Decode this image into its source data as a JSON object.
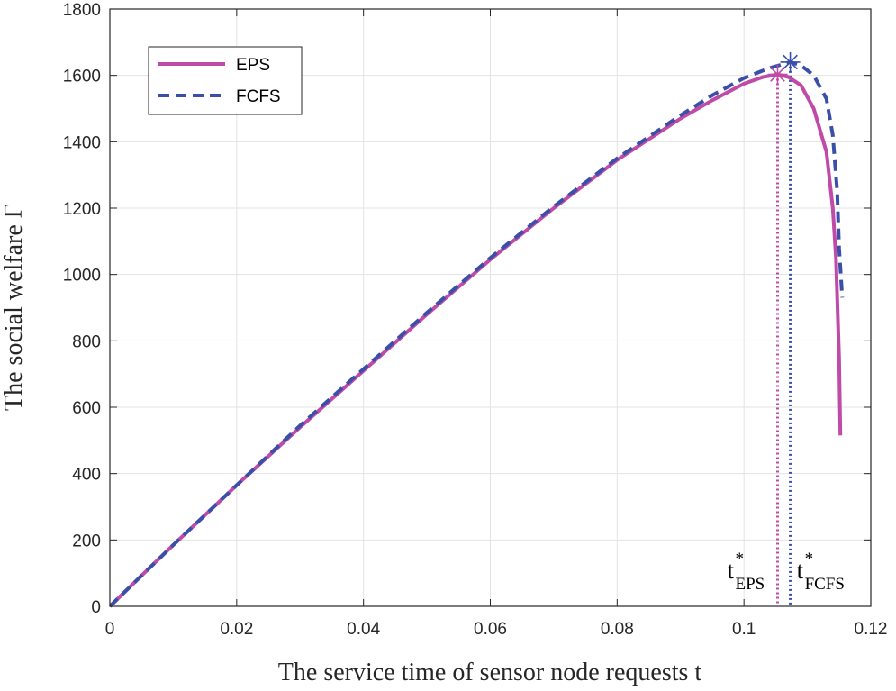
{
  "chart_data": {
    "type": "line",
    "xlabel": "The service time of sensor node requests t",
    "ylabel": "The social welfare Γ",
    "xlim": [
      0,
      0.12
    ],
    "ylim": [
      0,
      1800
    ],
    "xticks": [
      0,
      0.02,
      0.04,
      0.06,
      0.08,
      0.1,
      0.12
    ],
    "xtick_labels": [
      "0",
      "0.02",
      "0.04",
      "0.06",
      "0.08",
      "0.1",
      "0.12"
    ],
    "yticks": [
      0,
      200,
      400,
      600,
      800,
      1000,
      1200,
      1400,
      1600,
      1800
    ],
    "ytick_labels": [
      "0",
      "200",
      "400",
      "600",
      "800",
      "1000",
      "1200",
      "1400",
      "1600",
      "1800"
    ],
    "grid": true,
    "legend_position": "top-left",
    "series": [
      {
        "name": "EPS",
        "color": "#c04aa8",
        "style": "solid",
        "x": [
          0,
          0.01,
          0.02,
          0.03,
          0.04,
          0.05,
          0.06,
          0.07,
          0.08,
          0.09,
          0.095,
          0.1,
          0.103,
          0.1053,
          0.107,
          0.109,
          0.111,
          0.113,
          0.114,
          0.1145,
          0.115,
          0.1152
        ],
        "y": [
          0,
          185,
          365,
          540,
          710,
          880,
          1045,
          1200,
          1345,
          1470,
          1525,
          1575,
          1595,
          1603,
          1595,
          1570,
          1500,
          1370,
          1200,
          1050,
          750,
          515
        ]
      },
      {
        "name": "FCFS",
        "color": "#3a4fa8",
        "style": "dashed",
        "x": [
          0,
          0.01,
          0.02,
          0.03,
          0.04,
          0.05,
          0.06,
          0.07,
          0.08,
          0.09,
          0.095,
          0.1,
          0.104,
          0.1073,
          0.109,
          0.111,
          0.113,
          0.114,
          0.1147,
          0.115,
          0.1155
        ],
        "y": [
          0,
          185,
          365,
          545,
          715,
          885,
          1050,
          1205,
          1350,
          1480,
          1540,
          1592,
          1622,
          1640,
          1630,
          1600,
          1530,
          1420,
          1250,
          1080,
          930
        ]
      }
    ],
    "optimal_points": [
      {
        "series": "EPS",
        "x": 0.1053,
        "y": 1603,
        "marker": "asterisk",
        "color": "#c04aa8"
      },
      {
        "series": "FCFS",
        "x": 0.1073,
        "y": 1640,
        "marker": "asterisk",
        "color": "#3a4fa8"
      }
    ],
    "annotations": [
      {
        "base": "t",
        "sup": "*",
        "sub": "EPS",
        "at_x": 0.1053
      },
      {
        "base": "t",
        "sup": "*",
        "sub": "FCFS",
        "at_x": 0.1073
      }
    ]
  }
}
